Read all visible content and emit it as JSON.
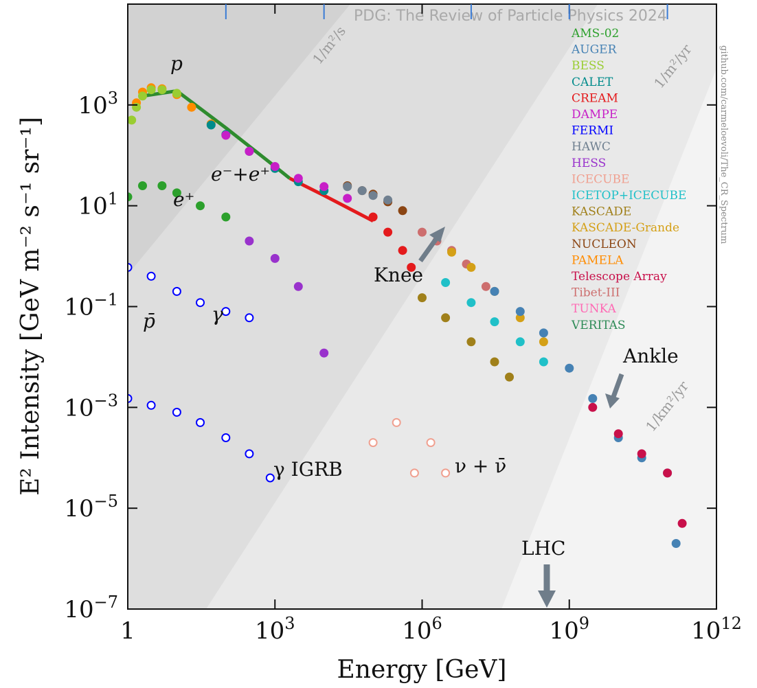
{
  "watermark": "PDG: The Review of Particle Physics 2024",
  "credit": "github.com/carmeloevoli/The_CR_Spectrum",
  "chart_data": {
    "type": "scatter",
    "x_scale": "log",
    "y_scale": "log",
    "xlim": [
      1,
      1000000000000.0
    ],
    "ylim": [
      1e-07,
      100000.0
    ],
    "xlabel": "Energy [GeV]",
    "ylabel": "E² Intensity [GeV m⁻² s⁻¹ sr⁻¹]",
    "x_ticks": [
      {
        "value": 1,
        "label": "1"
      },
      {
        "value": 1000,
        "base": "10",
        "exp": "3"
      },
      {
        "value": 1000000,
        "base": "10",
        "exp": "6"
      },
      {
        "value": 1000000000,
        "base": "10",
        "exp": "9"
      },
      {
        "value": 1000000000000,
        "base": "10",
        "exp": "12"
      }
    ],
    "y_ticks": [
      {
        "value": 1e-07,
        "base": "10",
        "exp": "−7"
      },
      {
        "value": 1e-05,
        "base": "10",
        "exp": "−5"
      },
      {
        "value": 0.001,
        "base": "10",
        "exp": "−3"
      },
      {
        "value": 0.1,
        "base": "10",
        "exp": "−1"
      },
      {
        "value": 10,
        "base": "10",
        "exp": "1"
      },
      {
        "value": 1000,
        "base": "10",
        "exp": "3"
      }
    ],
    "flux_bands": [
      "1/m²/s",
      "1/m²/yr",
      "1/km²/yr"
    ],
    "legend_position": "top-right",
    "legend": [
      {
        "name": "AMS-02",
        "color": "#2ca02c"
      },
      {
        "name": "AUGER",
        "color": "#4682b4"
      },
      {
        "name": "BESS",
        "color": "#9acd32"
      },
      {
        "name": "CALET",
        "color": "#008b8b"
      },
      {
        "name": "CREAM",
        "color": "#e41a1c"
      },
      {
        "name": "DAMPE",
        "color": "#c71fc7"
      },
      {
        "name": "FERMI",
        "color": "#0000ff"
      },
      {
        "name": "HAWC",
        "color": "#708090"
      },
      {
        "name": "HESS",
        "color": "#9932cc"
      },
      {
        "name": "ICECUBE",
        "color": "#f0a090"
      },
      {
        "name": "ICETOP+ICECUBE",
        "color": "#20c0c8"
      },
      {
        "name": "KASCADE",
        "color": "#a0801a"
      },
      {
        "name": "KASCADE-Grande",
        "color": "#d4a017"
      },
      {
        "name": "NUCLEON",
        "color": "#8b4513"
      },
      {
        "name": "PAMELA",
        "color": "#ff8c00"
      },
      {
        "name": "Telescope Array",
        "color": "#c8104a"
      },
      {
        "name": "Tibet-III",
        "color": "#cd6e6e"
      },
      {
        "name": "TUNKA",
        "color": "#ff69b4"
      },
      {
        "name": "VERITAS",
        "color": "#2e8b57"
      }
    ],
    "annotations": {
      "proton": "p",
      "electrons": "e⁻+e⁺",
      "positron": "e⁺",
      "antiproton": "p̄",
      "gamma": "γ",
      "igrb": "γ IGRB",
      "neutrino": "ν + ν̄",
      "knee": "Knee",
      "ankle": "Ankle",
      "lhc": "LHC"
    },
    "series": [
      {
        "name": "AMS-02",
        "kind": "line",
        "color": "#2e8b2e",
        "x": [
          2,
          10,
          100,
          1000,
          2000
        ],
        "y": [
          1500,
          1900,
          350,
          60,
          35
        ]
      },
      {
        "name": "CREAM",
        "kind": "line",
        "color": "#e41a1c",
        "x": [
          2000,
          10000,
          100000
        ],
        "y": [
          35,
          16,
          5
        ]
      },
      {
        "name": "PAMELA",
        "kind": "points",
        "color": "#ff8c00",
        "x": [
          1.5,
          2,
          3,
          5,
          10,
          20,
          50
        ],
        "y": [
          1100,
          1800,
          2200,
          2100,
          1600,
          900,
          420
        ]
      },
      {
        "name": "BESS",
        "kind": "points",
        "color": "#9acd32",
        "x": [
          1.2,
          1.5,
          2,
          3,
          5,
          10
        ],
        "y": [
          500,
          900,
          1500,
          2000,
          2000,
          1700
        ]
      },
      {
        "name": "CALET",
        "kind": "points",
        "color": "#008b8b",
        "x": [
          50,
          100,
          300,
          1000,
          3000,
          10000
        ],
        "y": [
          400,
          260,
          120,
          55,
          30,
          20
        ]
      },
      {
        "name": "DAMPE",
        "kind": "points",
        "color": "#c71fc7",
        "x": [
          100,
          300,
          1000,
          3000,
          10000,
          30000
        ],
        "y": [
          250,
          120,
          60,
          35,
          24,
          14
        ]
      },
      {
        "name": "NUCLEON",
        "kind": "points",
        "color": "#8b4513",
        "x": [
          30000,
          60000,
          100000,
          200000,
          400000
        ],
        "y": [
          25,
          20,
          17,
          12,
          8
        ]
      },
      {
        "name": "HAWC",
        "kind": "points",
        "color": "#708090",
        "x": [
          30000,
          60000,
          100000,
          200000
        ],
        "y": [
          24,
          20,
          16,
          13
        ]
      },
      {
        "name": "CREAM",
        "kind": "points",
        "color": "#e41a1c",
        "x": [
          100000,
          200000,
          400000,
          600000
        ],
        "y": [
          6,
          3,
          1.3,
          0.6
        ]
      },
      {
        "name": "Tibet-III",
        "kind": "points",
        "color": "#cd6e6e",
        "x": [
          1000000,
          2000000,
          4000000,
          8000000,
          20000000
        ],
        "y": [
          3,
          2,
          1.3,
          0.7,
          0.25
        ]
      },
      {
        "name": "KASCADE-Grande",
        "kind": "points",
        "color": "#d4a017",
        "x": [
          4000000,
          10000000,
          30000000,
          100000000,
          300000000
        ],
        "y": [
          1.2,
          0.6,
          0.2,
          0.06,
          0.02
        ]
      },
      {
        "name": "AUGER",
        "kind": "points",
        "color": "#4682b4",
        "x": [
          30000000,
          100000000,
          300000000,
          1000000000,
          3000000000,
          10000000000,
          30000000000,
          100000000000,
          150000000000
        ],
        "y": [
          0.2,
          0.08,
          0.03,
          0.006,
          0.0015,
          0.00025,
          0.0001,
          5e-05,
          2e-06
        ]
      },
      {
        "name": "Telescope Array",
        "kind": "points",
        "color": "#c8104a",
        "x": [
          3000000000,
          10000000000,
          30000000000,
          100000000000,
          200000000000
        ],
        "y": [
          0.001,
          0.0003,
          0.00012,
          5e-05,
          5e-06
        ]
      },
      {
        "name": "KASCADE",
        "kind": "points",
        "color": "#a0801a",
        "x": [
          1000000,
          3000000,
          10000000,
          30000000,
          60000000
        ],
        "y": [
          0.15,
          0.06,
          0.02,
          0.008,
          0.004
        ]
      },
      {
        "name": "ICETOP+ICECUBE",
        "kind": "points",
        "color": "#20c0c8",
        "x": [
          3000000,
          10000000,
          30000000,
          100000000,
          300000000
        ],
        "y": [
          0.3,
          0.12,
          0.05,
          0.02,
          0.008
        ]
      },
      {
        "name": "AMS-02 e-+e+",
        "kind": "points",
        "color": "#2ca02c",
        "x": [
          1,
          2,
          5,
          10,
          30,
          100
        ],
        "y": [
          15,
          25,
          25,
          18,
          10,
          6
        ]
      },
      {
        "name": "HESS",
        "kind": "points",
        "color": "#9932cc",
        "x": [
          300,
          1000,
          3000,
          10000
        ],
        "y": [
          2,
          0.9,
          0.25,
          0.012
        ]
      },
      {
        "name": "FERMI γ",
        "kind": "points",
        "color": "#0000ff",
        "x": [
          1,
          3,
          10,
          30,
          100,
          300
        ],
        "y": [
          0.6,
          0.4,
          0.2,
          0.12,
          0.08,
          0.06
        ]
      },
      {
        "name": "FERMI IGRB",
        "kind": "points",
        "color": "#0000ff",
        "x": [
          1,
          3,
          10,
          30,
          100,
          300,
          800
        ],
        "y": [
          0.0015,
          0.0011,
          0.0008,
          0.0005,
          0.00025,
          0.00012,
          4e-05
        ]
      },
      {
        "name": "ICECUBE ν",
        "kind": "points",
        "color": "#f0a090",
        "x": [
          100000,
          300000,
          700000,
          1500000,
          3000000
        ],
        "y": [
          0.0002,
          0.0005,
          5e-05,
          0.0002,
          5e-05
        ]
      }
    ]
  }
}
